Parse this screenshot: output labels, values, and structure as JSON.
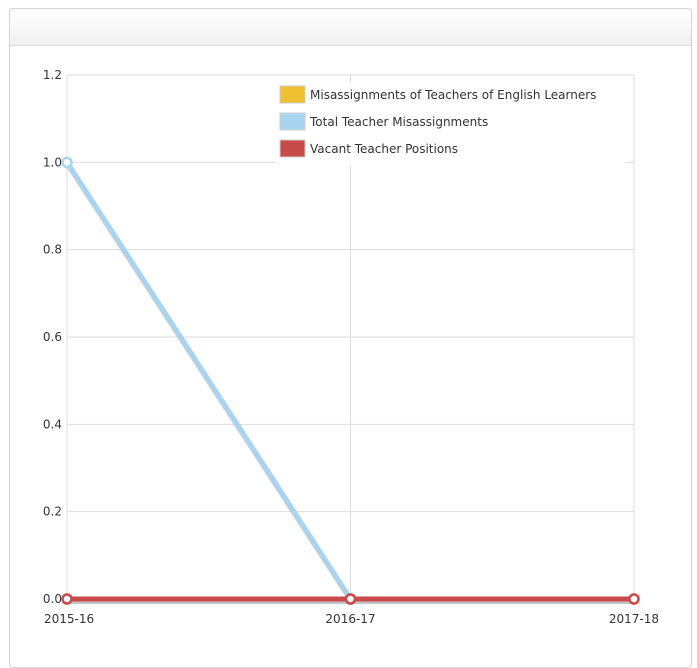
{
  "panel": {
    "title": ""
  },
  "chart_data": {
    "type": "line",
    "categories": [
      "2015-16",
      "2016-17",
      "2017-18"
    ],
    "series": [
      {
        "name": "Misassignments of Teachers of English Learners",
        "values": [
          0,
          0,
          0
        ],
        "color": "#f0c030"
      },
      {
        "name": "Total Teacher Misassignments",
        "values": [
          1,
          0,
          null
        ],
        "color": "#a8d4f0"
      },
      {
        "name": "Vacant Teacher Positions",
        "values": [
          0,
          0,
          0
        ],
        "color": "#c94a4a"
      }
    ],
    "yticks": [
      "0.0",
      "0.2",
      "0.4",
      "0.6",
      "0.8",
      "1.0",
      "1.2"
    ],
    "ylim": [
      0,
      1.2
    ],
    "xlabel": "",
    "ylabel": "",
    "title": "",
    "grid": true,
    "legend_position": "top-right"
  }
}
